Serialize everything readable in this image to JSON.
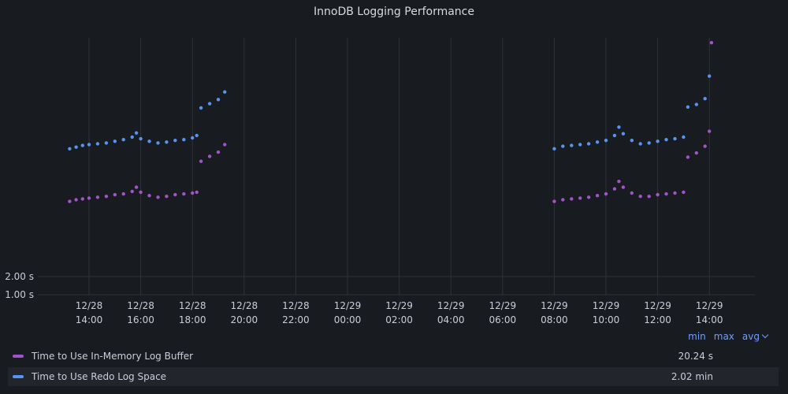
{
  "panel": {
    "title": "InnoDB Logging Performance"
  },
  "legend": {
    "columns": [
      "min",
      "max",
      "avg"
    ],
    "sort_column": "avg",
    "rows": [
      {
        "name": "Time to Use In-Memory Log Buffer",
        "color": "#a352cc",
        "avg": "20.24 s"
      },
      {
        "name": "Time to Use Redo Log Space",
        "color": "#5794f2",
        "avg": "2.02 min"
      }
    ]
  },
  "chart_data": {
    "type": "scatter",
    "title": "InnoDB Logging Performance",
    "xlabel": "",
    "ylabel": "",
    "x_ticks": [
      "12/28 14:00",
      "12/28 16:00",
      "12/28 18:00",
      "12/28 20:00",
      "12/28 22:00",
      "12/29 00:00",
      "12/29 02:00",
      "12/29 04:00",
      "12/29 06:00",
      "12/29 08:00",
      "12/29 10:00",
      "12/29 12:00",
      "12/29 14:00"
    ],
    "y_ticks": [
      "1.00 s",
      "2.00 s"
    ],
    "grid": true,
    "legend_position": "bottom",
    "series": [
      {
        "name": "Time to Use In-Memory Log Buffer",
        "color": "#a352cc",
        "points": [
          [
            "12/28 13:15",
            20
          ],
          [
            "12/28 13:30",
            20.4
          ],
          [
            "12/28 13:45",
            20.6
          ],
          [
            "12/28 14:00",
            20.8
          ],
          [
            "12/28 14:20",
            21
          ],
          [
            "12/28 14:40",
            21.2
          ],
          [
            "12/28 15:00",
            21.6
          ],
          [
            "12/28 15:20",
            21.8
          ],
          [
            "12/28 15:40",
            22.4
          ],
          [
            "12/28 15:50",
            23.4
          ],
          [
            "12/28 16:00",
            22.2
          ],
          [
            "12/28 16:20",
            21.4
          ],
          [
            "12/28 16:40",
            21
          ],
          [
            "12/28 17:00",
            21.2
          ],
          [
            "12/28 17:20",
            21.6
          ],
          [
            "12/28 17:40",
            21.8
          ],
          [
            "12/28 18:00",
            22
          ],
          [
            "12/28 18:10",
            22.2
          ],
          [
            "12/28 18:20",
            29.6
          ],
          [
            "12/28 18:40",
            30.8
          ],
          [
            "12/28 19:00",
            31.8
          ],
          [
            "12/28 19:15",
            33.6
          ],
          [
            "12/29 08:00",
            20
          ],
          [
            "12/29 08:20",
            20.4
          ],
          [
            "12/29 08:40",
            20.6
          ],
          [
            "12/29 09:00",
            20.8
          ],
          [
            "12/29 09:20",
            21
          ],
          [
            "12/29 09:40",
            21.4
          ],
          [
            "12/29 10:00",
            21.8
          ],
          [
            "12/29 10:20",
            23
          ],
          [
            "12/29 10:30",
            24.8
          ],
          [
            "12/29 10:40",
            23.4
          ],
          [
            "12/29 11:00",
            22
          ],
          [
            "12/29 11:20",
            21.2
          ],
          [
            "12/29 11:40",
            21.2
          ],
          [
            "12/29 12:00",
            21.6
          ],
          [
            "12/29 12:20",
            21.8
          ],
          [
            "12/29 12:40",
            22
          ],
          [
            "12/29 13:00",
            22.2
          ],
          [
            "12/29 13:10",
            30.6
          ],
          [
            "12/29 13:30",
            31.6
          ],
          [
            "12/29 13:50",
            33.2
          ],
          [
            "12/29 14:00",
            36.8
          ],
          [
            "12/29 14:05",
            58
          ]
        ]
      },
      {
        "name": "Time to Use Redo Log Space",
        "color": "#5794f2",
        "points": [
          [
            "12/28 13:15",
            32.6
          ],
          [
            "12/28 13:30",
            33
          ],
          [
            "12/28 13:45",
            33.4
          ],
          [
            "12/28 14:00",
            33.6
          ],
          [
            "12/28 14:20",
            33.8
          ],
          [
            "12/28 14:40",
            34
          ],
          [
            "12/28 15:00",
            34.4
          ],
          [
            "12/28 15:20",
            34.8
          ],
          [
            "12/28 15:40",
            35.4
          ],
          [
            "12/28 15:50",
            36.4
          ],
          [
            "12/28 16:00",
            35
          ],
          [
            "12/28 16:20",
            34.4
          ],
          [
            "12/28 16:40",
            34
          ],
          [
            "12/28 17:00",
            34.2
          ],
          [
            "12/28 17:20",
            34.6
          ],
          [
            "12/28 17:40",
            34.8
          ],
          [
            "12/28 18:00",
            35.2
          ],
          [
            "12/28 18:10",
            35.8
          ],
          [
            "12/28 18:20",
            42.4
          ],
          [
            "12/28 18:40",
            43.4
          ],
          [
            "12/28 19:00",
            44.4
          ],
          [
            "12/28 19:15",
            46.2
          ],
          [
            "12/29 08:00",
            32.6
          ],
          [
            "12/29 08:20",
            33.2
          ],
          [
            "12/29 08:40",
            33.4
          ],
          [
            "12/29 09:00",
            33.6
          ],
          [
            "12/29 09:20",
            33.8
          ],
          [
            "12/29 09:40",
            34.2
          ],
          [
            "12/29 10:00",
            34.6
          ],
          [
            "12/29 10:20",
            35.8
          ],
          [
            "12/29 10:30",
            37.8
          ],
          [
            "12/29 10:40",
            36.2
          ],
          [
            "12/29 11:00",
            34.6
          ],
          [
            "12/29 11:20",
            33.8
          ],
          [
            "12/29 11:40",
            34
          ],
          [
            "12/29 12:00",
            34.4
          ],
          [
            "12/29 12:20",
            34.8
          ],
          [
            "12/29 12:40",
            35
          ],
          [
            "12/29 13:00",
            35.4
          ],
          [
            "12/29 13:10",
            42.6
          ],
          [
            "12/29 13:30",
            43.2
          ],
          [
            "12/29 13:50",
            44.6
          ],
          [
            "12/29 14:00",
            50
          ],
          [
            "12/29 14:05",
            71
          ]
        ]
      }
    ]
  }
}
